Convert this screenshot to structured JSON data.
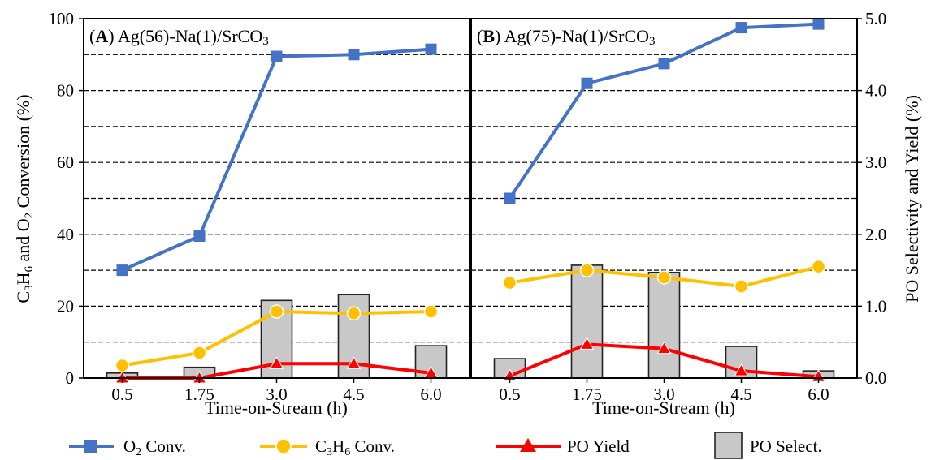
{
  "chart_data": {
    "type": "bar+line",
    "legend": {
      "placement": "bottom",
      "items": [
        {
          "key": "o2",
          "label_main": "O",
          "label_sub": "2",
          "label_rest": " Conv.",
          "color": "#4472c4",
          "marker": "square"
        },
        {
          "key": "c3h6",
          "label_main": "C",
          "label_sub": "3",
          "label_main2": "H",
          "label_sub2": "6",
          "label_rest": " Conv.",
          "color": "#ffc000",
          "marker": "circle"
        },
        {
          "key": "yield",
          "label_main": "PO Yield",
          "color": "#ff0000",
          "marker": "triangle"
        },
        {
          "key": "select",
          "label_main": "PO Select.",
          "color": "#c8c8c8",
          "marker": "bar"
        }
      ]
    },
    "left_axis": {
      "title_parts": [
        "C",
        "3",
        "H",
        "6",
        " and O",
        "2",
        " Conversion (%)"
      ],
      "ylim": [
        0,
        100
      ],
      "ticks": [
        "0",
        "20",
        "40",
        "60",
        "80",
        "100"
      ]
    },
    "right_axis": {
      "title": "PO Selectivity and Yield (%)",
      "ylim": [
        0,
        5
      ],
      "ticks": [
        "0.0",
        "1.0",
        "2.0",
        "3.0",
        "4.0",
        "5.0"
      ]
    },
    "x_axis_title": "Time-on-Stream (h)",
    "categories": [
      "0.5",
      "1.75",
      "3.0",
      "4.5",
      "6.0"
    ],
    "panels": [
      {
        "id": "A",
        "title_bold": "A",
        "title_main": ") Ag(56)-Na(1)/SrCO",
        "title_sub": "3",
        "o2_conversion": [
          30,
          39.5,
          89.5,
          90,
          91.5
        ],
        "c3h6_conversion": [
          3.5,
          7,
          18.5,
          18,
          18.5
        ],
        "po_yield": [
          0.0,
          0.0,
          0.2,
          0.2,
          0.07
        ],
        "po_selectivity": [
          0.07,
          0.15,
          1.08,
          1.16,
          0.45
        ]
      },
      {
        "id": "B",
        "title_bold": "B",
        "title_main": ") Ag(75)-Na(1)/SrCO",
        "title_sub": "3",
        "o2_conversion": [
          50,
          82,
          87.5,
          97.5,
          98.5
        ],
        "c3h6_conversion": [
          26.5,
          30,
          28,
          25.5,
          31
        ],
        "po_yield": [
          0.03,
          0.47,
          0.41,
          0.1,
          0.02
        ],
        "po_selectivity": [
          0.27,
          1.57,
          1.47,
          0.44,
          0.1
        ]
      }
    ]
  }
}
